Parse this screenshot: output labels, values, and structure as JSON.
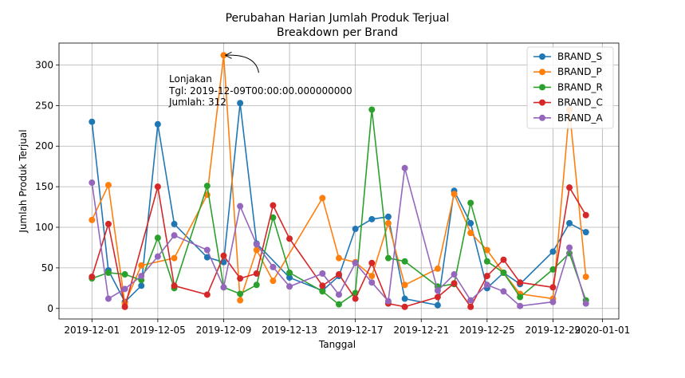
{
  "chart_data": {
    "type": "line",
    "title": "Perubahan Harian Jumlah Produk Terjual",
    "subtitle": "Breakdown per Brand",
    "xlabel": "Tanggal",
    "ylabel": "Jumlah Produk Terjual",
    "xlim": [
      "2019-11-29",
      "2020-01-02"
    ],
    "ylim": [
      -13,
      327
    ],
    "grid": true,
    "legend_position": "top-right",
    "x_ticks": [
      "2019-12-01",
      "2019-12-05",
      "2019-12-09",
      "2019-12-13",
      "2019-12-17",
      "2019-12-21",
      "2019-12-25",
      "2019-12-29",
      "2020-01-01"
    ],
    "y_ticks": [
      0,
      50,
      100,
      150,
      200,
      250,
      300
    ],
    "series": [
      {
        "name": "BRAND_S",
        "color": "#1f77b4",
        "x": [
          "2019-12-01",
          "2019-12-02",
          "2019-12-03",
          "2019-12-04",
          "2019-12-05",
          "2019-12-06",
          "2019-12-08",
          "2019-12-09",
          "2019-12-10",
          "2019-12-11",
          "2019-12-13",
          "2019-12-15",
          "2019-12-16",
          "2019-12-17",
          "2019-12-18",
          "2019-12-19",
          "2019-12-20",
          "2019-12-22",
          "2019-12-23",
          "2019-12-24",
          "2019-12-25",
          "2019-12-26",
          "2019-12-27",
          "2019-12-29",
          "2019-12-30",
          "2019-12-31"
        ],
        "y": [
          230,
          47,
          8,
          28,
          227,
          104,
          63,
          57,
          253,
          80,
          38,
          22,
          40,
          98,
          110,
          113,
          12,
          4,
          145,
          105,
          25,
          44,
          30,
          70,
          105,
          94
        ]
      },
      {
        "name": "BRAND_P",
        "color": "#ff7f0e",
        "x": [
          "2019-12-01",
          "2019-12-02",
          "2019-12-03",
          "2019-12-04",
          "2019-12-06",
          "2019-12-08",
          "2019-12-09",
          "2019-12-10",
          "2019-12-11",
          "2019-12-12",
          "2019-12-15",
          "2019-12-16",
          "2019-12-17",
          "2019-12-18",
          "2019-12-19",
          "2019-12-20",
          "2019-12-22",
          "2019-12-23",
          "2019-12-24",
          "2019-12-25",
          "2019-12-26",
          "2019-12-27",
          "2019-12-29",
          "2019-12-30",
          "2019-12-31"
        ],
        "y": [
          109,
          152,
          6,
          53,
          62,
          140,
          312,
          10,
          72,
          34,
          136,
          62,
          57,
          40,
          105,
          29,
          49,
          141,
          93,
          72,
          44,
          18,
          12,
          245,
          39
        ]
      },
      {
        "name": "BRAND_R",
        "color": "#2ca02c",
        "x": [
          "2019-12-01",
          "2019-12-02",
          "2019-12-03",
          "2019-12-04",
          "2019-12-05",
          "2019-12-06",
          "2019-12-08",
          "2019-12-09",
          "2019-12-10",
          "2019-12-11",
          "2019-12-12",
          "2019-12-13",
          "2019-12-15",
          "2019-12-16",
          "2019-12-17",
          "2019-12-18",
          "2019-12-19",
          "2019-12-20",
          "2019-12-22",
          "2019-12-23",
          "2019-12-24",
          "2019-12-25",
          "2019-12-26",
          "2019-12-27",
          "2019-12-29",
          "2019-12-30",
          "2019-12-31"
        ],
        "y": [
          37,
          44,
          42,
          35,
          87,
          25,
          151,
          26,
          18,
          29,
          112,
          44,
          21,
          5,
          19,
          245,
          62,
          58,
          27,
          30,
          130,
          58,
          44,
          14,
          48,
          68,
          10
        ]
      },
      {
        "name": "BRAND_C",
        "color": "#d62728",
        "x": [
          "2019-12-01",
          "2019-12-02",
          "2019-12-03",
          "2019-12-05",
          "2019-12-06",
          "2019-12-08",
          "2019-12-09",
          "2019-12-10",
          "2019-12-11",
          "2019-12-12",
          "2019-12-13",
          "2019-12-15",
          "2019-12-16",
          "2019-12-17",
          "2019-12-18",
          "2019-12-19",
          "2019-12-20",
          "2019-12-22",
          "2019-12-23",
          "2019-12-24",
          "2019-12-25",
          "2019-12-26",
          "2019-12-27",
          "2019-12-29",
          "2019-12-30",
          "2019-12-31"
        ],
        "y": [
          39,
          104,
          2,
          150,
          28,
          17,
          65,
          37,
          43,
          127,
          86,
          28,
          42,
          12,
          56,
          6,
          2,
          14,
          31,
          2,
          40,
          60,
          32,
          26,
          149,
          115
        ]
      },
      {
        "name": "BRAND_A",
        "color": "#9467bd",
        "x": [
          "2019-12-01",
          "2019-12-02",
          "2019-12-03",
          "2019-12-04",
          "2019-12-05",
          "2019-12-06",
          "2019-12-08",
          "2019-12-09",
          "2019-12-10",
          "2019-12-11",
          "2019-12-12",
          "2019-12-13",
          "2019-12-15",
          "2019-12-16",
          "2019-12-17",
          "2019-12-18",
          "2019-12-19",
          "2019-12-20",
          "2019-12-22",
          "2019-12-23",
          "2019-12-24",
          "2019-12-25",
          "2019-12-26",
          "2019-12-27",
          "2019-12-29",
          "2019-12-30",
          "2019-12-31"
        ],
        "y": [
          155,
          12,
          24,
          40,
          64,
          90,
          72,
          26,
          126,
          79,
          51,
          27,
          43,
          17,
          56,
          32,
          9,
          173,
          22,
          42,
          10,
          29,
          21,
          3,
          8,
          75,
          6
        ]
      }
    ],
    "annotation": {
      "lines": [
        "Lonjakan",
        "Tgl: 2019-12-09T00:00:00.000000000",
        "Jumlah: 312"
      ],
      "target_x": "2019-12-09",
      "target_y": 312
    }
  }
}
